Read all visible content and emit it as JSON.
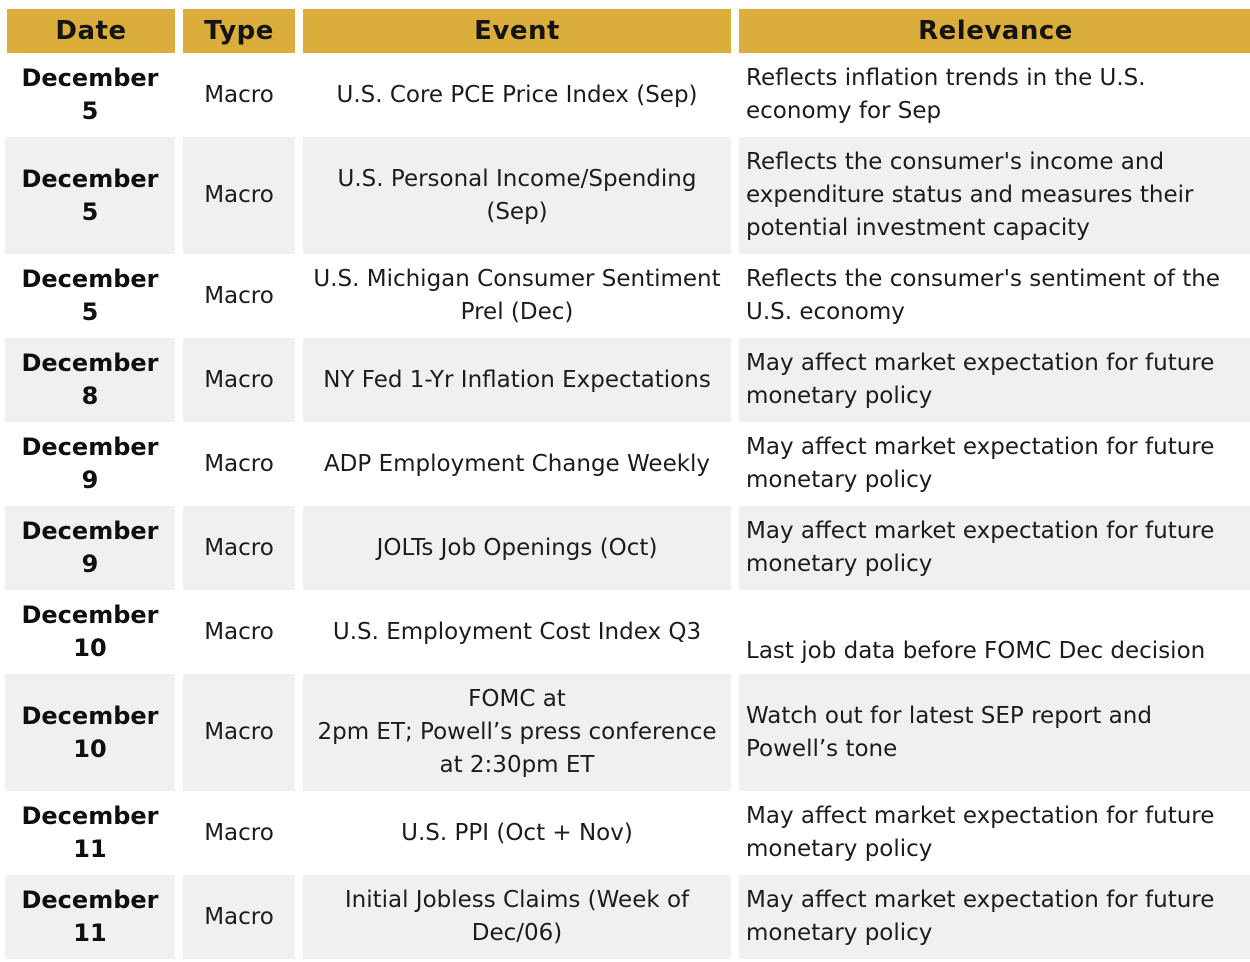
{
  "colors": {
    "header_bg": "#DBAE3C",
    "row_alt_bg": "#F0F0F0",
    "row_bg": "#FFFFFF",
    "text": "#1C1C1C"
  },
  "header": {
    "columns": [
      {
        "label": "Date"
      },
      {
        "label": "Type"
      },
      {
        "label": "Event"
      },
      {
        "label": "Relevance"
      }
    ]
  },
  "rows": [
    {
      "date": "December 5",
      "type": "Macro",
      "event": "U.S. Core PCE Price Index (Sep)",
      "relevance": "Reflects inflation trends in the U.S.\neconomy for Sep"
    },
    {
      "date": "December 5",
      "type": "Macro",
      "event": "U.S. Personal Income/Spending\n(Sep)",
      "relevance": "Reflects the consumer's income and\nexpenditure status and measures their\npotential investment capacity"
    },
    {
      "date": "December 5",
      "type": "Macro",
      "event": "U.S. Michigan Consumer Sentiment\nPrel (Dec)",
      "relevance": "Reflects the consumer's sentiment of the\nU.S. economy"
    },
    {
      "date": "December 8",
      "type": "Macro",
      "event": "NY Fed 1-Yr Inflation Expectations",
      "relevance": "May affect market expectation for future\nmonetary policy"
    },
    {
      "date": "December 9",
      "type": "Macro",
      "event": "ADP Employment Change Weekly",
      "relevance": "May affect market expectation for future\nmonetary policy"
    },
    {
      "date": "December 9",
      "type": "Macro",
      "event": "JOLTs Job Openings (Oct)",
      "relevance": "May affect market expectation for future\nmonetary policy"
    },
    {
      "date": "December\n10",
      "type": "Macro",
      "event": "U.S. Employment Cost Index Q3",
      "relevance": "Last job data before FOMC Dec decision",
      "relevance_valign": "bottom"
    },
    {
      "date": "December\n10",
      "type": "Macro",
      "event": "FOMC at\n2pm ET; Powell’s press conference\nat 2:30pm ET",
      "relevance": "Watch out for latest SEP report and\nPowell’s tone"
    },
    {
      "date": "December\n11",
      "type": "Macro",
      "event": "U.S. PPI (Oct + Nov)",
      "relevance": "May affect market expectation for future\nmonetary policy"
    },
    {
      "date": "December\n11",
      "type": "Macro",
      "event": "Initial Jobless Claims (Week of\nDec/06)",
      "relevance": "May affect market expectation for future\nmonetary policy"
    }
  ]
}
